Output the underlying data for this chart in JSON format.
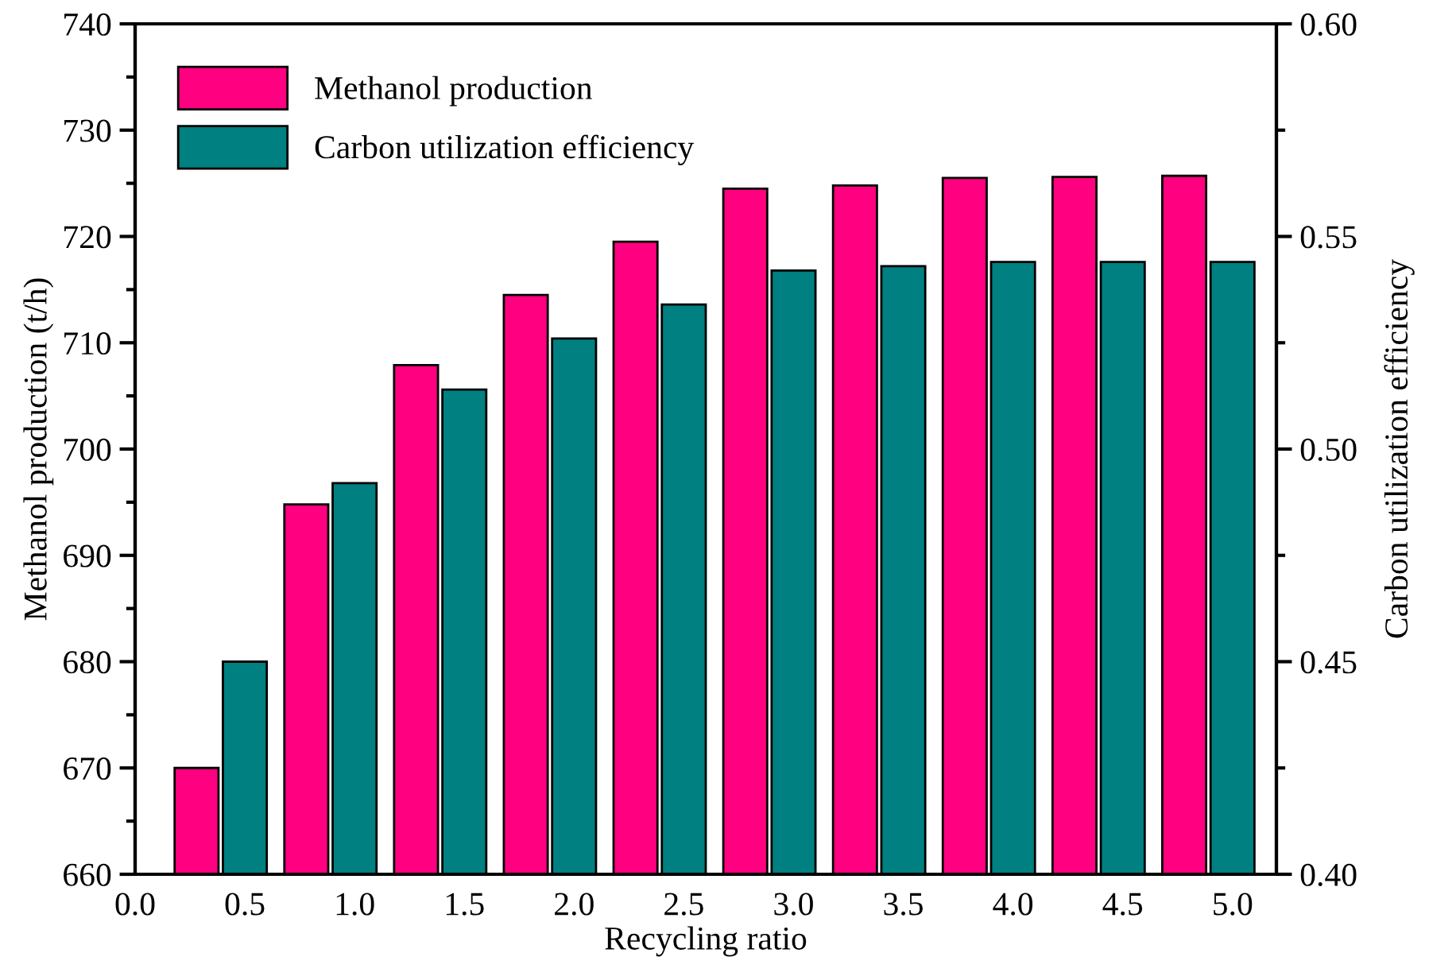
{
  "chart_data": {
    "type": "bar",
    "xlabel": "Recycling ratio",
    "ylabel": "Methanol production (t/h)",
    "y2label": "Carbon utilization efficiency",
    "x": [
      0.5,
      1.0,
      1.5,
      2.0,
      2.5,
      3.0,
      3.5,
      4.0,
      4.5,
      5.0
    ],
    "xlim": [
      0,
      5.2
    ],
    "xticks": [
      {
        "value": 0,
        "label": "0.0"
      },
      0.5,
      {
        "value": 1,
        "label": "1.0"
      },
      1.5,
      {
        "value": 2,
        "label": "2.0"
      },
      2.5,
      {
        "value": 3,
        "label": "3.0"
      },
      3.5,
      {
        "value": 4,
        "label": "4.0"
      },
      4.5,
      {
        "value": 5,
        "label": "5.0"
      }
    ],
    "ylim": [
      660,
      740
    ],
    "yticks": [
      660,
      670,
      680,
      690,
      700,
      710,
      720,
      730,
      740
    ],
    "y2lim": [
      0.4,
      0.6
    ],
    "y2ticks": [
      {
        "value": 0.4,
        "label": "0.40"
      },
      0.45,
      {
        "value": 0.5,
        "label": "0.50"
      },
      0.55,
      {
        "value": 0.6,
        "label": "0.60"
      }
    ],
    "series": [
      {
        "name": "Methanol production",
        "color": "#ff0080",
        "values": [
          670.0,
          694.8,
          707.9,
          714.5,
          719.5,
          724.5,
          724.8,
          725.5,
          725.6,
          725.7
        ]
      },
      {
        "name": "Carbon utilization efficiency",
        "color": "#008080",
        "axis": "y2",
        "values": [
          0.45,
          0.492,
          0.514,
          0.526,
          0.534,
          0.542,
          0.543,
          0.544,
          0.544,
          0.544
        ]
      }
    ],
    "legend": "top left",
    "grid": false
  }
}
